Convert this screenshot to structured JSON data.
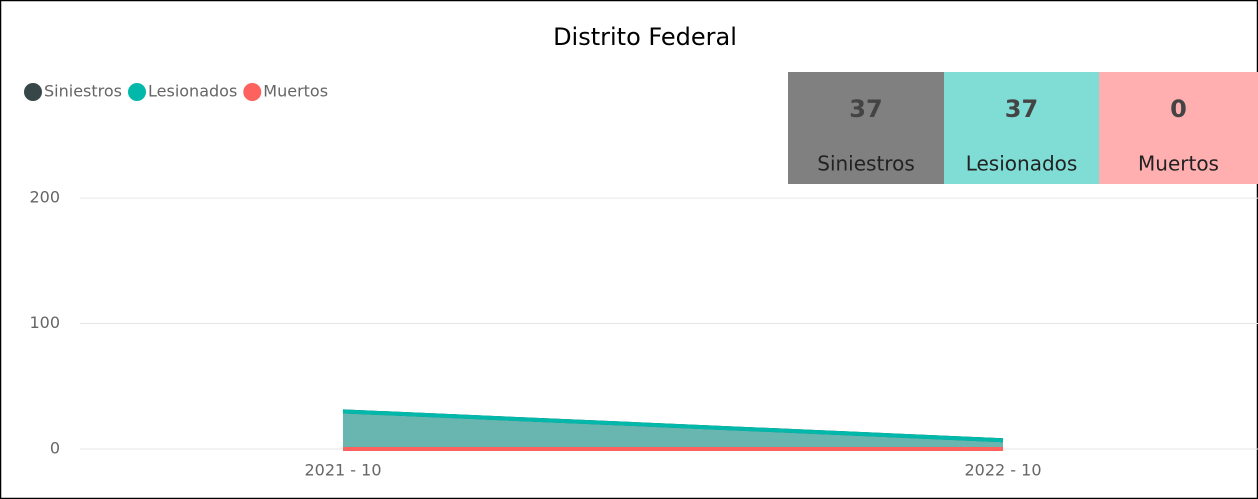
{
  "chart_data": {
    "type": "area",
    "title": "Distrito Federal",
    "categories": [
      "2021 - 10",
      "2022 - 10"
    ],
    "series": [
      {
        "name": "Siniestros",
        "color": "#374649",
        "values": [
          30,
          7
        ]
      },
      {
        "name": "Lesionados",
        "color": "#01B8AA",
        "values": [
          30,
          7
        ]
      },
      {
        "name": "Muertos",
        "color": "#FD625E",
        "values": [
          0,
          0
        ]
      }
    ],
    "ylim": [
      0,
      220
    ],
    "yticks": [
      0,
      100,
      200
    ],
    "grid": true,
    "legend": "top-left"
  },
  "cards": [
    {
      "value": 37,
      "label": "Siniestros",
      "color": "#808080"
    },
    {
      "value": 37,
      "label": "Lesionados",
      "color": "#80DDD5"
    },
    {
      "value": 0,
      "label": "Muertos",
      "color": "#FFAFAF"
    }
  ]
}
